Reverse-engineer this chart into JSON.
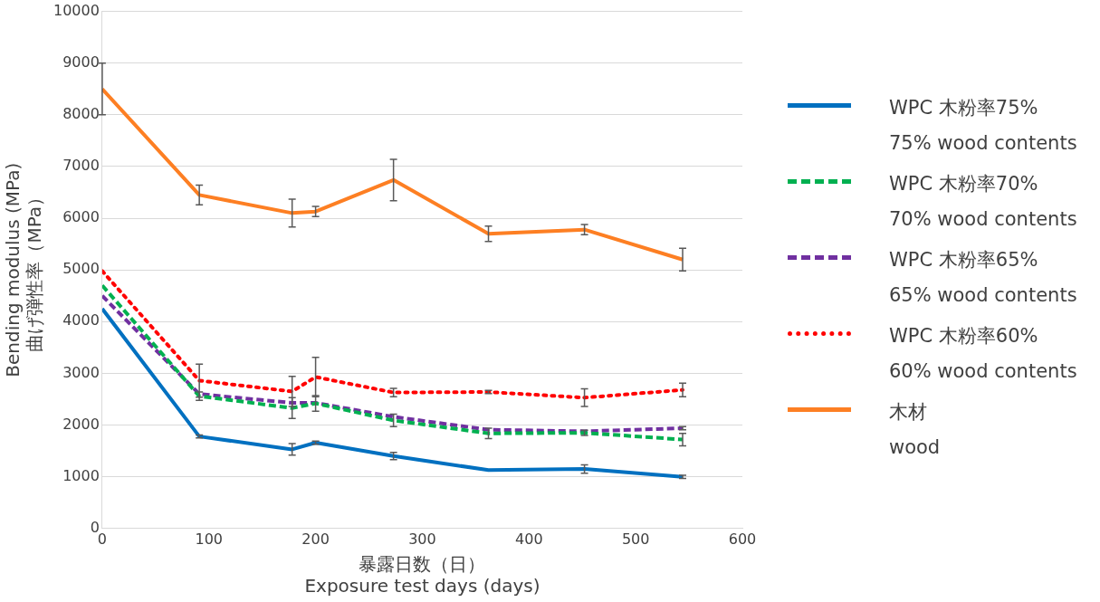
{
  "chart_data": {
    "type": "line",
    "xlabel": "暴露日数（日）\nExposure test days (days)",
    "ylabel": "Bending modulus (MPa)\n曲げ弾性率（MPa）",
    "xlim": [
      0,
      600
    ],
    "xticks": [
      0,
      100,
      200,
      300,
      400,
      500,
      600
    ],
    "ylim": [
      0,
      10000
    ],
    "yticks": [
      0,
      1000,
      2000,
      3000,
      4000,
      5000,
      6000,
      7000,
      8000,
      9000,
      10000
    ],
    "grid": "y",
    "legend": "right",
    "marker": "none",
    "x": [
      0,
      91,
      178,
      200,
      273,
      362,
      452,
      544
    ],
    "series": [
      {
        "name": "WPC 木粉率75%\n75% wood contents",
        "color": "#0070c0",
        "line_style": "solid",
        "values": [
          4250,
          1780,
          1530,
          1660,
          1400,
          1130,
          1150,
          1000
        ],
        "errors": [
          null,
          30,
          110,
          30,
          70,
          null,
          80,
          30
        ]
      },
      {
        "name": "WPC 木粉率70%\n70% wood contents",
        "color": "#00b050",
        "line_style": "dashed",
        "values": [
          4700,
          2560,
          2330,
          2420,
          2090,
          1840,
          1850,
          1720
        ],
        "errors": [
          null,
          80,
          200,
          150,
          120,
          100,
          50,
          120
        ]
      },
      {
        "name": "WPC 木粉率65%\n65% wood contents",
        "color": "#7030a0",
        "line_style": "dashed",
        "values": [
          4500,
          2600,
          2430,
          2430,
          2160,
          1910,
          1880,
          1940
        ],
        "errors": [
          null,
          null,
          null,
          null,
          null,
          null,
          null,
          30
        ]
      },
      {
        "name": "WPC 木粉率60%\n60% wood contents",
        "color": "#ff0000",
        "line_style": "dotted",
        "values": [
          4980,
          2860,
          2650,
          2930,
          2630,
          2640,
          2530,
          2680
        ],
        "errors": [
          null,
          320,
          290,
          380,
          80,
          30,
          170,
          130
        ]
      },
      {
        "name": "木材\nwood",
        "color": "#fd7f23",
        "line_style": "solid",
        "values": [
          8500,
          6450,
          6100,
          6130,
          6740,
          5700,
          5780,
          5200
        ],
        "errors": [
          500,
          190,
          270,
          100,
          400,
          150,
          100,
          220
        ]
      }
    ]
  }
}
